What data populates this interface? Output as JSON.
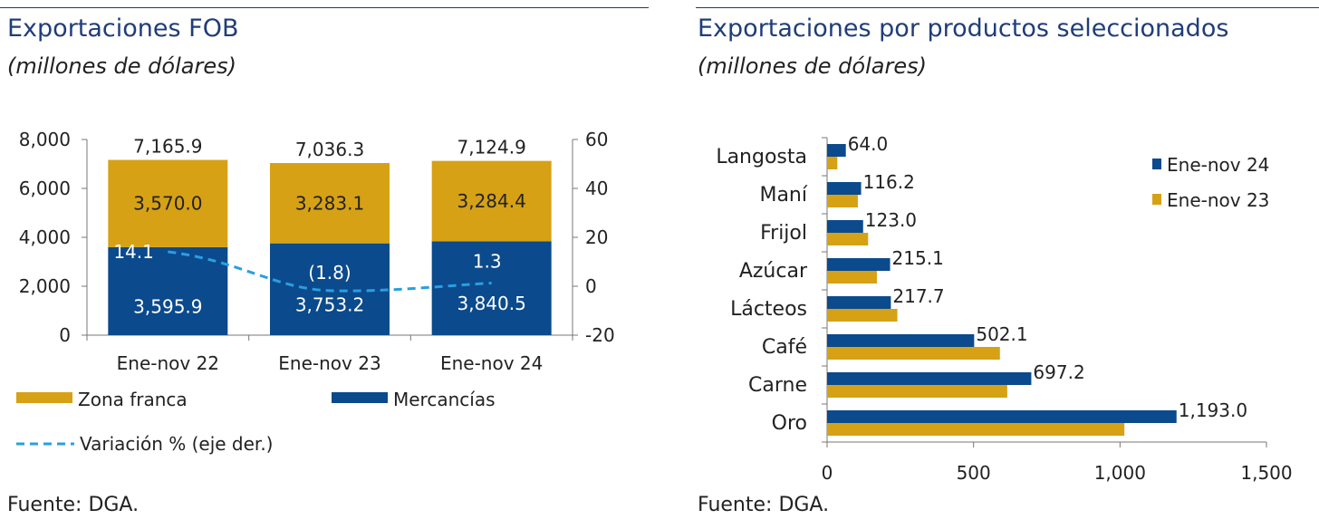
{
  "left": {
    "title": "Exportaciones FOB",
    "subtitle": "(millones de dólares)",
    "source": "Fuente: DGA."
  },
  "right": {
    "title": "Exportaciones por productos seleccionados",
    "subtitle": "(millones de dólares)",
    "source": "Fuente: DGA."
  },
  "colors": {
    "blue": "#0b4a8c",
    "gold": "#d6a115",
    "dash": "#2a9fe0",
    "title": "#1f3d7a",
    "rule": "#1f3a66"
  },
  "chart_data": [
    {
      "type": "bar",
      "stacked": true,
      "categories": [
        "Ene-nov 22",
        "Ene-nov 23",
        "Ene-nov 24"
      ],
      "series": [
        {
          "name": "Mercancías",
          "values": [
            3595.9,
            3753.2,
            3840.5
          ],
          "labels": [
            "3,595.9",
            "3,753.2",
            "3,840.5"
          ]
        },
        {
          "name": "Zona franca",
          "values": [
            3570.0,
            3283.1,
            3284.4
          ],
          "labels": [
            "3,570.0",
            "3,283.1",
            "3,284.4"
          ]
        }
      ],
      "totals": [
        7165.9,
        7036.3,
        7124.9
      ],
      "total_labels": [
        "7,165.9",
        "7,036.3",
        "7,124.9"
      ],
      "line_series": {
        "name": "Variación % (eje der.)",
        "values": [
          14.1,
          -1.8,
          1.3
        ],
        "labels": [
          "14.1",
          "(1.8)",
          "1.3"
        ],
        "axis": "right"
      },
      "ylim": [
        0,
        8000
      ],
      "yticks": [
        0,
        2000,
        4000,
        6000,
        8000
      ],
      "ytick_labels": [
        "0",
        "2,000",
        "4,000",
        "6,000",
        "8,000"
      ],
      "y2lim": [
        -20,
        60
      ],
      "y2ticks": [
        -20,
        0,
        20,
        40,
        60
      ],
      "y2tick_labels": [
        "-20",
        "0",
        "20",
        "40",
        "60"
      ],
      "legend": [
        {
          "label": "Zona franca",
          "kind": "box",
          "color_key": "gold"
        },
        {
          "label": "Mercancías",
          "kind": "box",
          "color_key": "blue"
        },
        {
          "label": "Variación % (eje der.)",
          "kind": "dash",
          "color_key": "dash"
        }
      ],
      "legend_position": "bottom",
      "grid": false
    },
    {
      "type": "bar",
      "orientation": "horizontal",
      "categories": [
        "Langosta",
        "Maní",
        "Frijol",
        "Azúcar",
        "Lácteos",
        "Café",
        "Carne",
        "Oro"
      ],
      "series": [
        {
          "name": "Ene-nov 24",
          "values": [
            64.0,
            116.2,
            123.0,
            215.1,
            217.7,
            502.1,
            697.2,
            1193.0
          ],
          "labels": [
            "64.0",
            "116.2",
            "123.0",
            "215.1",
            "217.7",
            "502.1",
            "697.2",
            "1,193.0"
          ]
        },
        {
          "name": "Ene-nov 23",
          "values": [
            35,
            105,
            140,
            170,
            240,
            590,
            615,
            1015
          ]
        }
      ],
      "xlim": [
        0,
        1500
      ],
      "xticks": [
        0,
        500,
        1000,
        1500
      ],
      "xtick_labels": [
        "0",
        "500",
        "1,000",
        "1,500"
      ],
      "legend_position": "top-right",
      "grid": false
    }
  ]
}
